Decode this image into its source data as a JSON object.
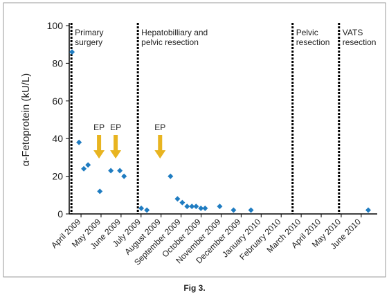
{
  "chart_data": {
    "type": "scatter",
    "y_label": "α-Fetoprotein (kU/L)",
    "x": [
      -0.45,
      -0.1,
      0.14,
      0.35,
      0.94,
      1.49,
      1.94,
      2.15,
      3.01,
      3.29,
      4.47,
      4.82,
      5.06,
      5.3,
      5.54,
      5.75,
      5.99,
      6.2,
      6.93,
      7.62,
      8.49,
      14.35
    ],
    "values": [
      86,
      38,
      24,
      26,
      12,
      23,
      23,
      20,
      3,
      2,
      20,
      8,
      6,
      4,
      4,
      4,
      3,
      3,
      4,
      2,
      2,
      2
    ],
    "color": "#1f7cc1",
    "xlim": [
      -0.59,
      14.8
    ],
    "xticks": [
      {
        "value": 0,
        "label": "April 2009"
      },
      {
        "value": 1,
        "label": "May 2009"
      },
      {
        "value": 2,
        "label": "June 2009"
      },
      {
        "value": 3,
        "label": "July 2009"
      },
      {
        "value": 4,
        "label": "August 2009"
      },
      {
        "value": 5,
        "label": "September 2009"
      },
      {
        "value": 6,
        "label": "October 2009"
      },
      {
        "value": 7,
        "label": "November 2009"
      },
      {
        "value": 8,
        "label": "December 2009"
      },
      {
        "value": 9,
        "label": "January 2010"
      },
      {
        "value": 10,
        "label": "February 2010"
      },
      {
        "value": 11,
        "label": "March 2010"
      },
      {
        "value": 12,
        "label": "April 2010"
      },
      {
        "value": 13,
        "label": "May 2010"
      },
      {
        "value": 14,
        "label": "June 2010"
      }
    ],
    "ylim": [
      0,
      100
    ],
    "yticks": [
      0,
      20,
      40,
      60,
      80,
      100
    ],
    "events": [
      {
        "x": -0.48,
        "label": [
          "Primary",
          "surgery"
        ]
      },
      {
        "x": 2.84,
        "label": [
          "Hepatobilliary and",
          "pelvic resection"
        ]
      },
      {
        "x": 10.57,
        "label": [
          "Pelvic",
          "resection"
        ]
      },
      {
        "x": 12.89,
        "label": [
          "VATS",
          "resection"
        ]
      }
    ],
    "arrows": {
      "color": "#e8b420",
      "items": [
        {
          "x": 0.9,
          "label": "EP"
        },
        {
          "x": 1.73,
          "label": "EP"
        },
        {
          "x": 3.95,
          "label": "EP"
        }
      ]
    }
  },
  "caption": "Fig 3."
}
